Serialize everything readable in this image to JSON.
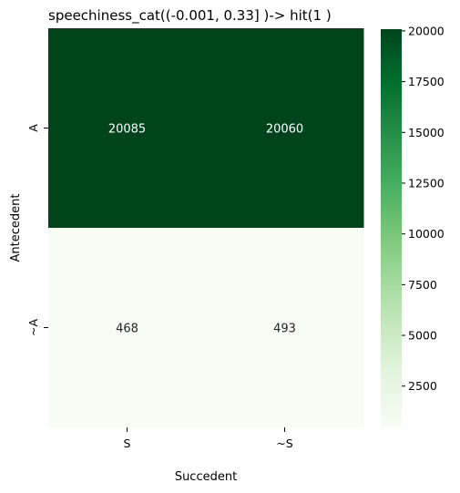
{
  "chart_data": {
    "type": "heatmap",
    "title": "speechiness_cat((-0.001, 0.33] )-> hit(1 )",
    "xlabel": "Succedent",
    "ylabel": "Antecedent",
    "x_categories": [
      "S",
      "~S"
    ],
    "y_categories": [
      "A",
      "~A"
    ],
    "values": [
      [
        20085,
        20060
      ],
      [
        468,
        493
      ]
    ],
    "colormap": "Greens",
    "colorbar": {
      "range": [
        468,
        20085
      ],
      "ticks": [
        2500,
        5000,
        7500,
        10000,
        12500,
        15000,
        17500,
        20000
      ]
    },
    "colors": {
      "low": "#f7fcf5",
      "high": "#00441b",
      "text_on_dark": "#ffffff",
      "text_on_light": "#262626"
    }
  }
}
